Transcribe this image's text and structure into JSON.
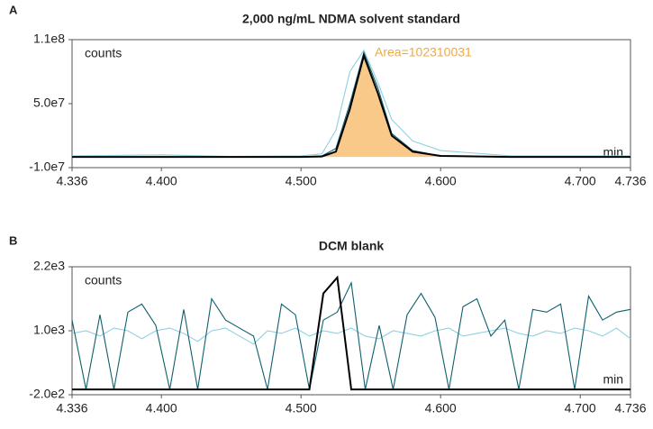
{
  "chart_data": [
    {
      "type": "line",
      "panel": "A",
      "title": "2,000 ng/mL NDMA solvent standard",
      "y_label": "counts",
      "x_label": "min",
      "annotation": "Area=102310031",
      "annotation_color": "#f2a93b",
      "fill_color": "#f9c98a",
      "x": [
        4.336,
        4.4,
        4.45,
        4.5,
        4.515,
        4.525,
        4.535,
        4.545,
        4.555,
        4.565,
        4.58,
        4.6,
        4.65,
        4.7,
        4.736
      ],
      "series": [
        {
          "color": "#8fd0e0",
          "values": [
            1000000,
            2000000,
            500000,
            1000000,
            3000000,
            25000000,
            80000000,
            100000000,
            70000000,
            35000000,
            15000000,
            6000000,
            1000000,
            1000000,
            1000000
          ]
        },
        {
          "color": "#0e5f6e",
          "values": [
            0,
            0,
            0,
            0,
            1000000,
            8000000,
            50000000,
            98000000,
            65000000,
            22000000,
            6000000,
            1000000,
            0,
            0,
            0
          ]
        },
        {
          "color": "#000000",
          "values": [
            0,
            0,
            0,
            0,
            500000,
            5000000,
            45000000,
            95000000,
            60000000,
            20000000,
            5000000,
            1000000,
            0,
            0,
            0
          ],
          "fill": true
        }
      ],
      "xlim": [
        4.336,
        4.736
      ],
      "ylim": [
        -10000000,
        110000000
      ],
      "xticks": [
        4.336,
        {
          "value": 4.4,
          "label": "4.400"
        },
        {
          "value": 4.5,
          "label": "4.500"
        },
        {
          "value": 4.6,
          "label": "4.600"
        },
        {
          "value": 4.7,
          "label": "4.700"
        },
        4.736
      ],
      "yticks": [
        {
          "value": 110000000,
          "label": "1.1e8"
        },
        {
          "value": 50000000,
          "label": "5.0e7"
        },
        {
          "value": -10000000,
          "label": "-1.0e7"
        }
      ]
    },
    {
      "type": "line",
      "panel": "B",
      "title": "DCM blank",
      "y_label": "counts",
      "x_label": "min",
      "x": [
        4.336,
        4.346,
        4.356,
        4.366,
        4.376,
        4.386,
        4.396,
        4.406,
        4.416,
        4.426,
        4.436,
        4.446,
        4.456,
        4.466,
        4.476,
        4.486,
        4.496,
        4.506,
        4.516,
        4.526,
        4.536,
        4.546,
        4.556,
        4.566,
        4.576,
        4.586,
        4.596,
        4.606,
        4.616,
        4.626,
        4.636,
        4.646,
        4.656,
        4.666,
        4.676,
        4.686,
        4.696,
        4.706,
        4.716,
        4.726,
        4.736
      ],
      "series": [
        {
          "color": "#8fd0e0",
          "values": [
            950,
            1000,
            900,
            1050,
            1000,
            850,
            1000,
            1050,
            950,
            800,
            1000,
            1050,
            900,
            750,
            1000,
            950,
            1050,
            900,
            1000,
            950,
            1050,
            900,
            850,
            1000,
            950,
            900,
            1000,
            1050,
            900,
            950,
            1000,
            1050,
            950,
            900,
            1000,
            950,
            1050,
            1000,
            900,
            1050,
            850
          ]
        },
        {
          "color": "#0e5f6e",
          "values": [
            1200,
            -100,
            1300,
            -100,
            1350,
            1500,
            1100,
            -100,
            1400,
            -100,
            1600,
            1200,
            1050,
            900,
            -100,
            1500,
            1300,
            -100,
            1200,
            1350,
            1900,
            -100,
            1100,
            -100,
            1300,
            1700,
            1250,
            -100,
            1450,
            1600,
            900,
            1200,
            -100,
            1400,
            1350,
            1500,
            -100,
            1650,
            1200,
            1350,
            1400
          ]
        },
        {
          "color": "#000000",
          "values": [
            -100,
            -100,
            -100,
            -100,
            -100,
            -100,
            -100,
            -100,
            -100,
            -100,
            -100,
            -100,
            -100,
            -100,
            -100,
            -100,
            -100,
            -100,
            1700,
            2000,
            -100,
            -100,
            -100,
            -100,
            -100,
            -100,
            -100,
            -100,
            -100,
            -100,
            -100,
            -100,
            -100,
            -100,
            -100,
            -100,
            -100,
            -100,
            -100,
            -100,
            -100
          ]
        }
      ],
      "xlim": [
        4.336,
        4.736
      ],
      "ylim": [
        -200,
        2200
      ],
      "xticks": [
        4.336,
        {
          "value": 4.4,
          "label": "4.400"
        },
        {
          "value": 4.5,
          "label": "4.500"
        },
        {
          "value": 4.6,
          "label": "4.600"
        },
        {
          "value": 4.7,
          "label": "4.700"
        },
        4.736
      ],
      "yticks": [
        {
          "value": 2200,
          "label": "2.2e3"
        },
        {
          "value": 1000,
          "label": "1.0e3"
        },
        {
          "value": -200,
          "label": "-2.0e2"
        }
      ]
    }
  ]
}
